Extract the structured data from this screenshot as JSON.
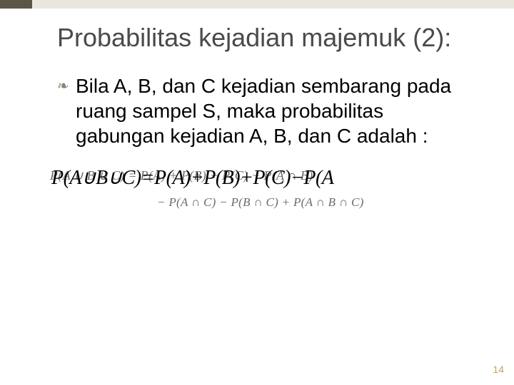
{
  "topbar": {
    "bg_color": "#eae7de",
    "dark_color": "#5a5648"
  },
  "title": "Probabilitas kejadian majemuk (2):",
  "bullet_glyph": "❧",
  "body": "Bila A, B, dan C kejadian sembarang pada ruang sampel S, maka probabilitas gabungan kejadian A, B, dan C adalah :",
  "formula_bg1": "P(A ∪ B ∪ C) = P(A) + P(B) + P(C) − P(A ∩ B)",
  "formula_bg2": "− P(A ∩ C) − P(B ∩ C) + P(A ∩ B ∩ C)",
  "formula_fg": "P(A∪B∪C)=P(A)+P(B)+P(C)−P(A",
  "page_number": "14"
}
